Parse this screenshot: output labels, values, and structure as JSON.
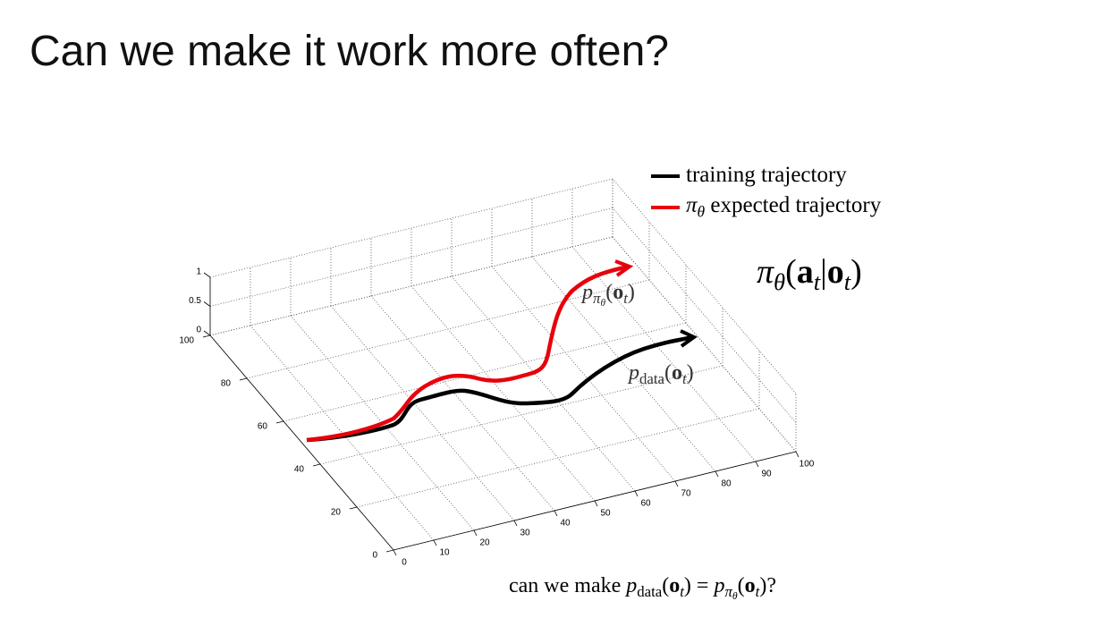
{
  "title": "Can we make it work more often?",
  "legend": {
    "training": "training trajectory",
    "expected": [
      "π",
      "θ",
      " expected trajectory"
    ]
  },
  "policy": [
    "π",
    "θ",
    "(",
    "a",
    "t",
    "|",
    "o",
    "t",
    ")"
  ],
  "pi_label": [
    "p",
    "π",
    "θ",
    "(",
    "o",
    "t",
    ")"
  ],
  "data_label": [
    "p",
    "data",
    "(",
    "o",
    "t",
    ")"
  ],
  "caption": [
    "can we make ",
    "p",
    "data",
    "(",
    "o",
    "t",
    ")",
    " = ",
    "p",
    "π",
    "θ",
    "(",
    "o",
    "t",
    ")",
    "?"
  ],
  "axes": {
    "z_ticks": [
      0,
      0.5,
      1
    ],
    "y_ticks": [
      0,
      20,
      40,
      60,
      80,
      100
    ],
    "x_ticks": [
      0,
      10,
      20,
      30,
      40,
      50,
      60,
      70,
      80,
      90,
      100
    ]
  }
}
